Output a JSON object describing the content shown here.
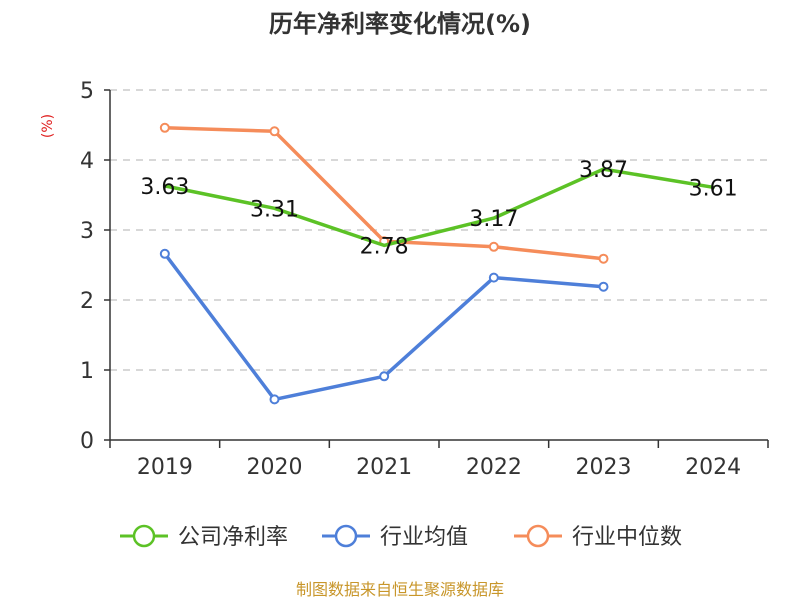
{
  "title": "历年净利率变化情况(%)",
  "footer": "制图数据来自恒生聚源数据库",
  "chart_data": {
    "type": "line",
    "title": "历年净利率变化情况(%)",
    "ylabel": "(%)",
    "xlabel": "",
    "categories": [
      "2019",
      "2020",
      "2021",
      "2022",
      "2023",
      "2024"
    ],
    "ylim": [
      0,
      5
    ],
    "yticks": [
      0,
      1,
      2,
      3,
      4,
      5
    ],
    "grid": true,
    "legend_position": "bottom",
    "series": [
      {
        "name": "公司净利率",
        "color": "#5cc226",
        "values": [
          3.63,
          3.31,
          2.78,
          3.17,
          3.87,
          3.61
        ],
        "labels": [
          "3.63",
          "3.31",
          "2.78",
          "3.17",
          "3.87",
          "3.61"
        ],
        "show_markers": false
      },
      {
        "name": "行业均值",
        "color": "#4e7fd9",
        "values": [
          2.66,
          0.58,
          0.91,
          2.32,
          2.19,
          null
        ],
        "show_markers": true
      },
      {
        "name": "行业中位数",
        "color": "#f58c5a",
        "values": [
          4.46,
          4.41,
          2.84,
          2.76,
          2.59,
          null
        ],
        "show_markers": true
      }
    ]
  }
}
